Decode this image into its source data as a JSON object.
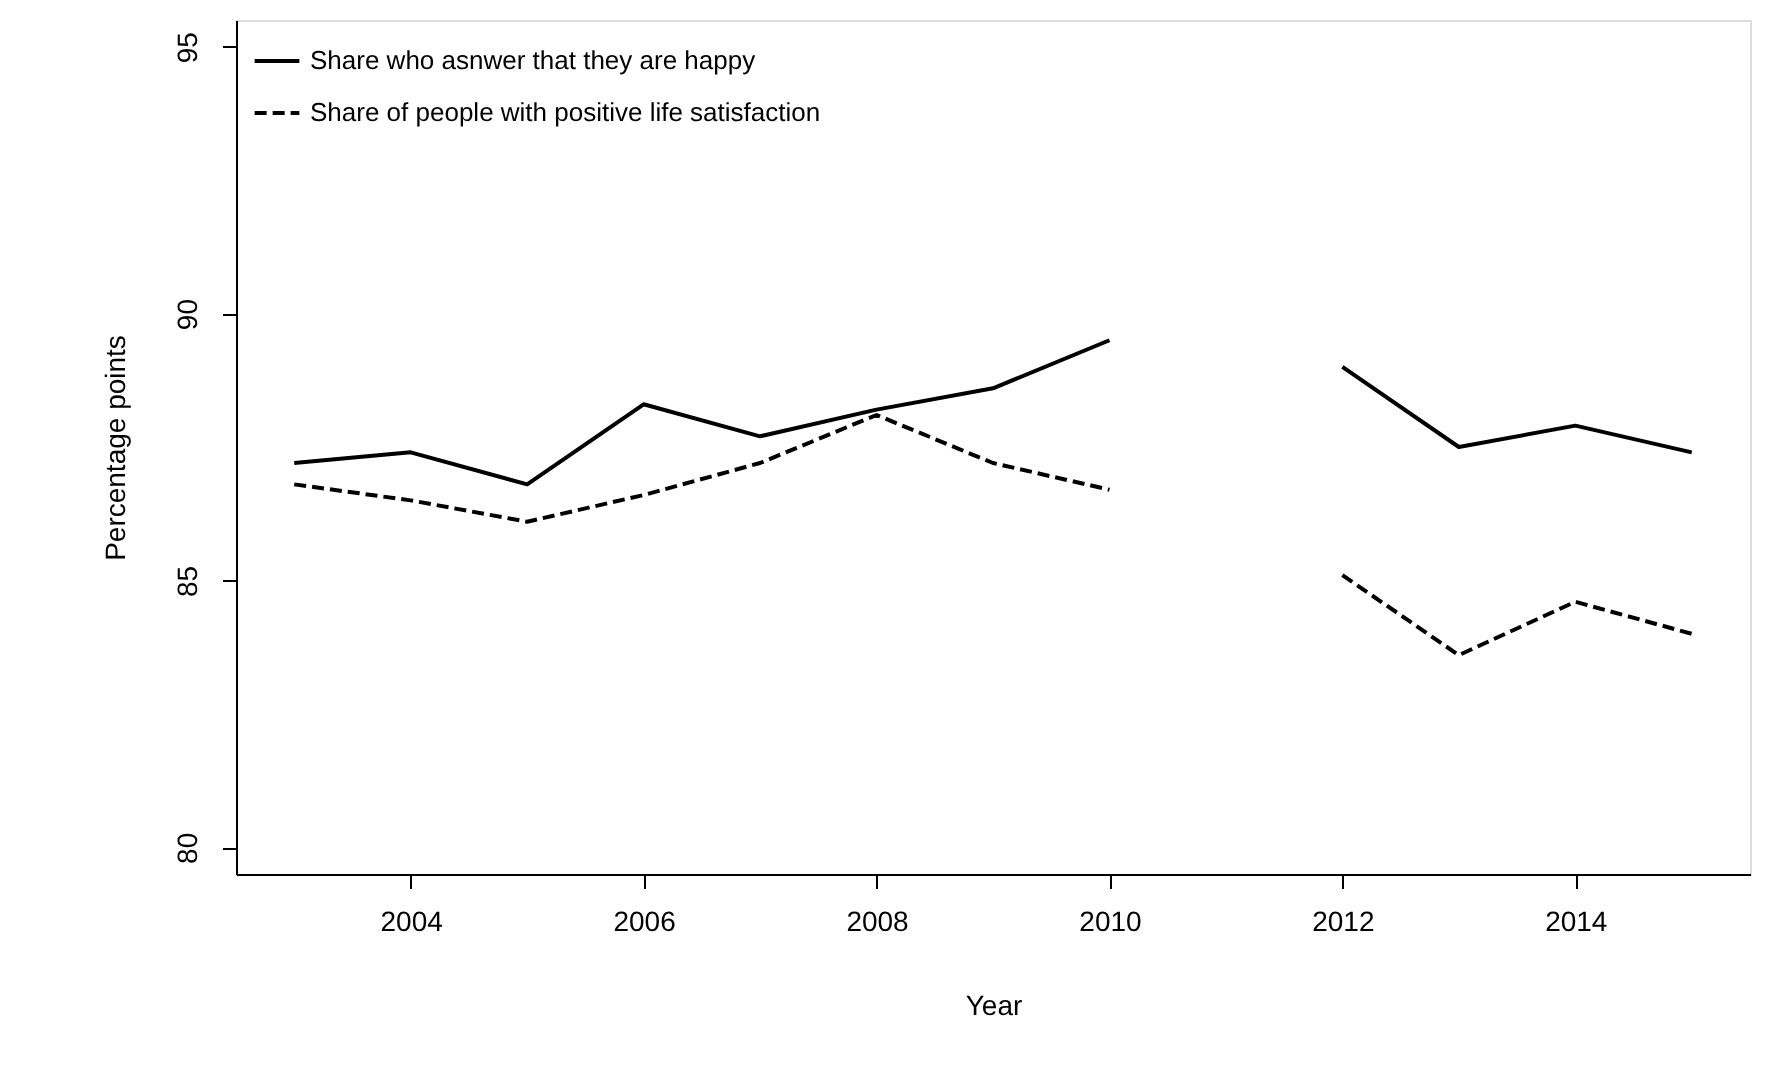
{
  "chart_data": {
    "type": "line",
    "xlabel": "Year",
    "ylabel": "Percentage points",
    "x": [
      2003,
      2004,
      2005,
      2006,
      2007,
      2008,
      2009,
      2010,
      2011,
      2012,
      2013,
      2014,
      2015
    ],
    "series": [
      {
        "name": "Share who asnwer that they are happy",
        "color": "#000000",
        "line_style": "solid",
        "values": [
          87.2,
          87.4,
          86.8,
          88.3,
          87.7,
          88.2,
          88.6,
          89.5,
          null,
          89.0,
          87.5,
          87.9,
          87.4
        ]
      },
      {
        "name": "Share of people with positive life satisfaction",
        "color": "#000000",
        "line_style": "dashed",
        "values": [
          86.8,
          86.5,
          86.1,
          86.6,
          87.2,
          88.1,
          87.2,
          86.7,
          null,
          85.1,
          83.6,
          84.6,
          84.0
        ]
      }
    ],
    "xlim": [
      2002.5,
      2015.5
    ],
    "xticks": [
      2004,
      2006,
      2008,
      2010,
      2012,
      2014
    ],
    "ylim": [
      79.5,
      95.5
    ],
    "yticks": [
      80,
      85,
      90,
      95
    ],
    "grid": false,
    "legend": "top left",
    "marker": "none"
  }
}
